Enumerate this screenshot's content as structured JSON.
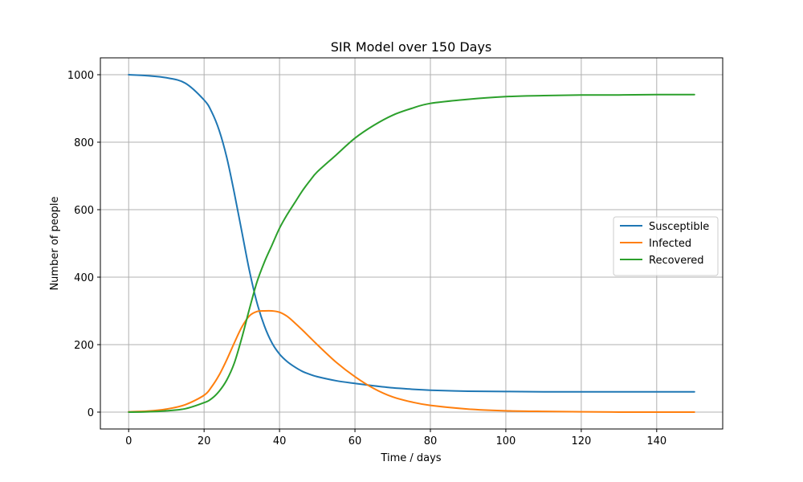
{
  "chart_data": {
    "type": "line",
    "title": "SIR Model over 150 Days",
    "xlabel": "Time / days",
    "ylabel": "Number of people",
    "xlim": [
      -7.5,
      157.5
    ],
    "ylim": [
      -50,
      1050
    ],
    "xticks": [
      0,
      20,
      40,
      60,
      80,
      100,
      120,
      140
    ],
    "yticks": [
      0,
      200,
      400,
      600,
      800,
      1000
    ],
    "grid": true,
    "legend_position": "right",
    "x": [
      0,
      5,
      10,
      15,
      20,
      22,
      24,
      26,
      28,
      30,
      32,
      34,
      36,
      38,
      40,
      42,
      44,
      46,
      48,
      50,
      55,
      60,
      65,
      70,
      75,
      80,
      90,
      100,
      110,
      120,
      130,
      140,
      150
    ],
    "series": [
      {
        "name": "Susceptible",
        "color": "#1f77b4",
        "values": [
          1000,
          997,
          991,
          975,
          925,
          890,
          835,
          755,
          650,
          535,
          420,
          325,
          255,
          205,
          172,
          150,
          134,
          121,
          112,
          105,
          93,
          85,
          78,
          72,
          68,
          65,
          62,
          61,
          60,
          60,
          60,
          60,
          60
        ]
      },
      {
        "name": "Infected",
        "color": "#ff7f0e",
        "values": [
          1,
          3,
          9,
          22,
          50,
          75,
          110,
          155,
          205,
          252,
          285,
          298,
          300,
          300,
          296,
          284,
          265,
          244,
          222,
          200,
          148,
          105,
          70,
          45,
          30,
          20,
          9,
          4,
          2,
          1,
          0,
          0,
          0
        ]
      },
      {
        "name": "Recovered",
        "color": "#2ca02c",
        "values": [
          0,
          1,
          4,
          10,
          28,
          40,
          62,
          95,
          145,
          220,
          305,
          385,
          445,
          495,
          545,
          585,
          620,
          655,
          685,
          712,
          762,
          812,
          850,
          880,
          900,
          915,
          927,
          935,
          938,
          940,
          940,
          941,
          941
        ]
      }
    ]
  }
}
